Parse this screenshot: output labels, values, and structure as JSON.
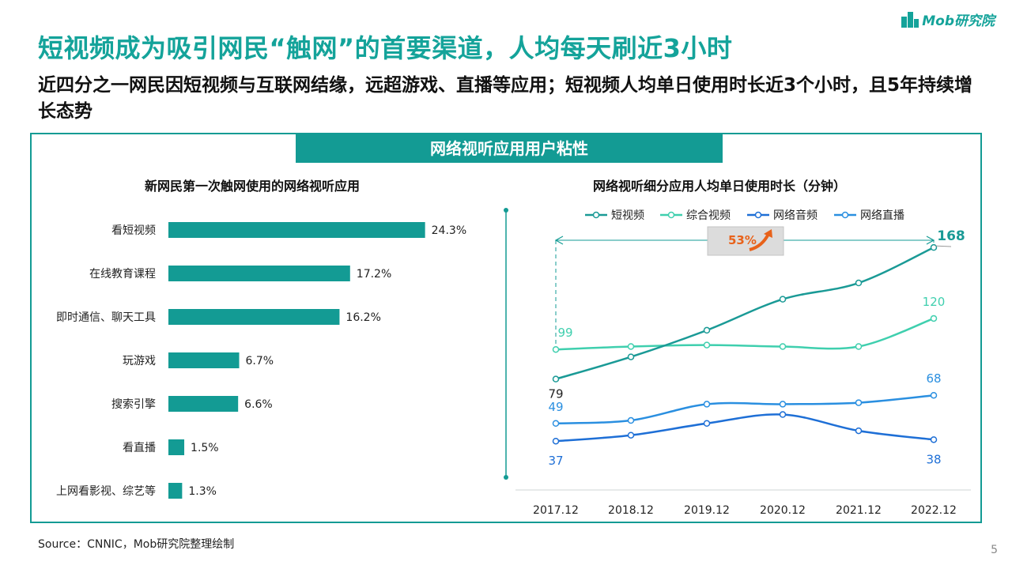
{
  "header": {
    "title": "短视频成为吸引网民“触网”的首要渠道，人均每天刷近3小时",
    "subtitle": "近四分之一网民因短视频与互联网结缘，远超游戏、直播等应用；短视频人均单日使用时长近3个小时，且5年持续增长态势"
  },
  "logo": {
    "text": "Mob研究院"
  },
  "panel": {
    "header": "网络视听应用用户粘性"
  },
  "footer": {
    "source": "Source：CNNIC，Mob研究院整理绘制",
    "page": "5"
  },
  "colors": {
    "teal": "#139b94",
    "short_video": "#1a9a96",
    "comprehensive_video": "#3fcfae",
    "audio": "#1e6fd6",
    "live": "#2a8fe0",
    "badge_arrow": "#e8621a"
  },
  "chart_data": [
    {
      "type": "bar",
      "orientation": "horizontal",
      "title": "新网民第一次触网使用的网络视听应用",
      "categories": [
        "看短视频",
        "在线教育课程",
        "即时通信、聊天工具",
        "玩游戏",
        "搜索引擎",
        "看直播",
        "上网看影视、综艺等"
      ],
      "values": [
        24.3,
        17.2,
        16.2,
        6.7,
        6.6,
        1.5,
        1.3
      ],
      "labels": [
        "24.3%",
        "17.2%",
        "16.2%",
        "6.7%",
        "6.6%",
        "1.5%",
        "1.3%"
      ],
      "unit": "%",
      "xlim": [
        0,
        25
      ]
    },
    {
      "type": "line",
      "title": "网络视听细分应用人均单日使用时长（分钟）",
      "categories": [
        "2017.12",
        "2018.12",
        "2019.12",
        "2020.12",
        "2021.12",
        "2022.12"
      ],
      "series": [
        {
          "name": "短视频",
          "values": [
            79,
            94,
            112,
            133,
            144,
            168
          ],
          "colorKey": "short_video"
        },
        {
          "name": "综合视频",
          "values": [
            99,
            101,
            102,
            101,
            101,
            120
          ],
          "colorKey": "comprehensive_video"
        },
        {
          "name": "网络音频",
          "values": [
            37,
            41,
            49,
            55,
            44,
            38
          ],
          "colorKey": "audio"
        },
        {
          "name": "网络直播",
          "values": [
            49,
            51,
            62,
            62,
            63,
            68
          ],
          "colorKey": "live"
        }
      ],
      "data_labels": [
        {
          "series": 0,
          "index": 0,
          "text": "79"
        },
        {
          "series": 0,
          "index": 5,
          "text": "168"
        },
        {
          "series": 1,
          "index": 0,
          "text": "99"
        },
        {
          "series": 1,
          "index": 5,
          "text": "120"
        },
        {
          "series": 2,
          "index": 0,
          "text": "37"
        },
        {
          "series": 2,
          "index": 5,
          "text": "38"
        },
        {
          "series": 3,
          "index": 0,
          "text": "49"
        },
        {
          "series": 3,
          "index": 5,
          "text": "68"
        }
      ],
      "annotation": {
        "text": "53%"
      },
      "ylim": [
        20,
        190
      ],
      "grid": false,
      "legend": "top"
    }
  ]
}
